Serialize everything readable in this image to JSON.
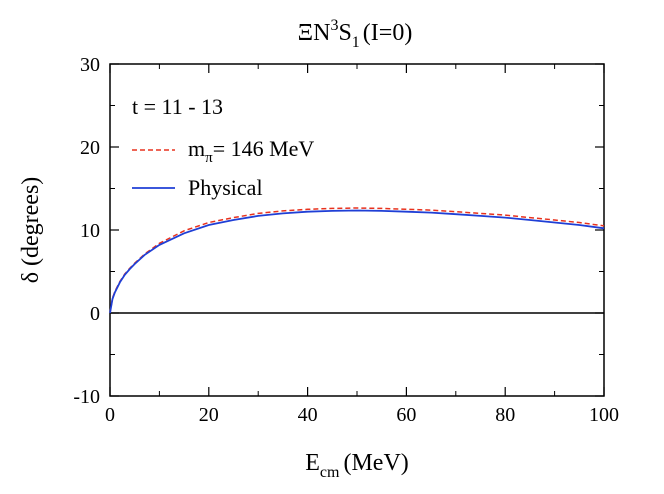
{
  "chart_data": {
    "type": "line",
    "title": {
      "prefix": "ΞN",
      "sup": "3",
      "main": "S",
      "sub": "1",
      "suffix": "(I=0)"
    },
    "xlabel": {
      "main": "E",
      "sub": "cm",
      "suffix": "(MeV)"
    },
    "ylabel": "δ (degrees)",
    "xlim": [
      0,
      100
    ],
    "ylim": [
      -10,
      30
    ],
    "xticks": [
      0,
      20,
      40,
      60,
      80,
      100
    ],
    "yticks": [
      -10,
      0,
      10,
      20,
      30
    ],
    "legend_title": "t = 11 - 13",
    "legend_position": "top-left",
    "zero_line": true,
    "series": [
      {
        "name_main": "m",
        "name_sub": "π",
        "name_suffix": "= 146 MeV",
        "color": "#e8321e",
        "dash": "dashed",
        "x": [
          0,
          0.5,
          1,
          2,
          3,
          4,
          5,
          7,
          10,
          15,
          20,
          25,
          30,
          35,
          40,
          45,
          50,
          55,
          60,
          65,
          70,
          75,
          80,
          85,
          90,
          95,
          100
        ],
        "y": [
          0,
          1.8,
          2.6,
          3.8,
          4.7,
          5.4,
          6.0,
          7.1,
          8.4,
          9.9,
          10.9,
          11.5,
          12.0,
          12.3,
          12.5,
          12.6,
          12.65,
          12.6,
          12.5,
          12.4,
          12.2,
          12.0,
          11.8,
          11.5,
          11.2,
          10.9,
          10.5
        ]
      },
      {
        "name_main": "Physical",
        "color": "#1f3fd6",
        "dash": "solid",
        "x": [
          0,
          0.5,
          1,
          2,
          3,
          4,
          5,
          7,
          10,
          15,
          20,
          25,
          30,
          35,
          40,
          45,
          50,
          55,
          60,
          65,
          70,
          75,
          80,
          85,
          90,
          95,
          100
        ],
        "y": [
          0,
          1.7,
          2.5,
          3.7,
          4.6,
          5.3,
          5.9,
          7.0,
          8.2,
          9.6,
          10.6,
          11.2,
          11.7,
          12.0,
          12.2,
          12.3,
          12.35,
          12.3,
          12.2,
          12.1,
          11.9,
          11.7,
          11.5,
          11.2,
          10.9,
          10.6,
          10.2
        ]
      }
    ]
  }
}
